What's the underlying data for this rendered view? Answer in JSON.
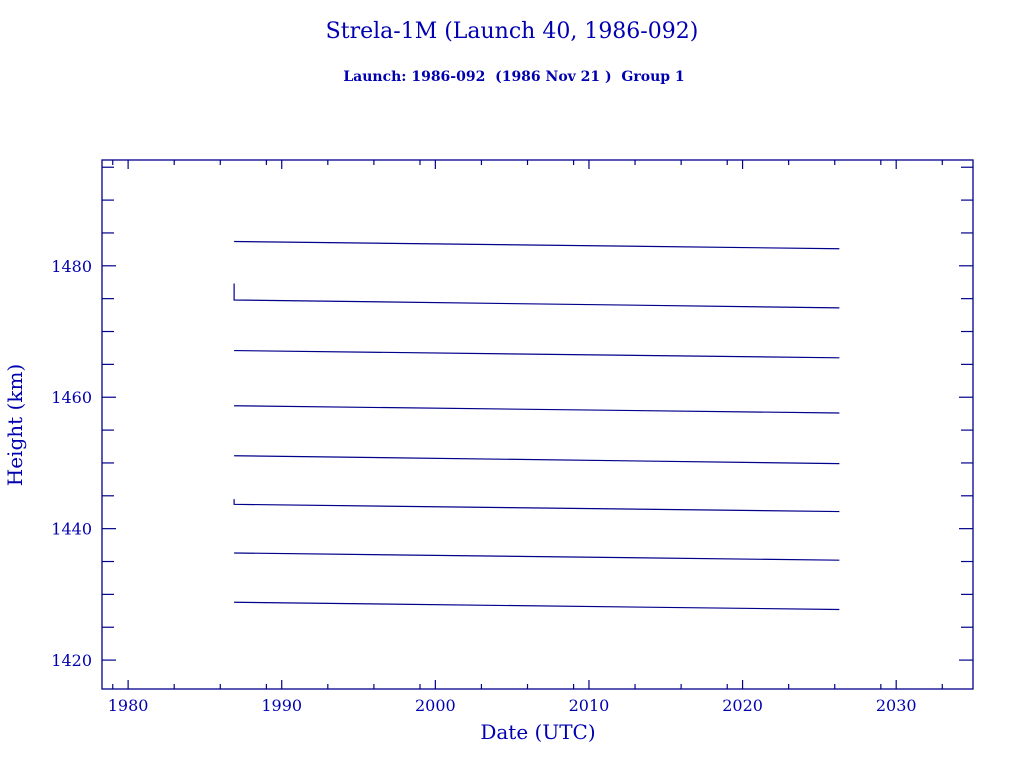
{
  "chart_data": {
    "type": "line",
    "title": "Strela-1M (Launch 40, 1986-092)",
    "subtitle": "Launch: 1986-092  (1986 Nov 21 )  Group 1",
    "xlabel": "Date (UTC)",
    "ylabel": "Height (km)",
    "xlim": [
      1978.3,
      2035.0
    ],
    "ylim": [
      1415.6,
      1496.1
    ],
    "xticks": [
      1980,
      1990,
      2000,
      2010,
      2020,
      2030
    ],
    "yticks": [
      1420,
      1440,
      1460,
      1480
    ],
    "grid": false,
    "color": "#00008b",
    "series": [
      {
        "points": [
          [
            1986.9,
            1483.7
          ],
          [
            2026.3,
            1482.6
          ]
        ]
      },
      {
        "points": [
          [
            1986.9,
            1477.3
          ],
          [
            1986.9,
            1474.8
          ],
          [
            2026.3,
            1473.6
          ]
        ]
      },
      {
        "points": [
          [
            1986.9,
            1467.1
          ],
          [
            2026.3,
            1466.0
          ]
        ]
      },
      {
        "points": [
          [
            1986.9,
            1458.7
          ],
          [
            2026.3,
            1457.6
          ]
        ]
      },
      {
        "points": [
          [
            1986.9,
            1451.1
          ],
          [
            2026.3,
            1449.9
          ]
        ]
      },
      {
        "points": [
          [
            1986.9,
            1444.5
          ],
          [
            1986.9,
            1443.7
          ],
          [
            2026.3,
            1442.6
          ]
        ]
      },
      {
        "points": [
          [
            1986.9,
            1436.3
          ],
          [
            2026.3,
            1435.2
          ]
        ]
      },
      {
        "points": [
          [
            1986.9,
            1428.8
          ],
          [
            2026.3,
            1427.7
          ]
        ]
      }
    ]
  }
}
